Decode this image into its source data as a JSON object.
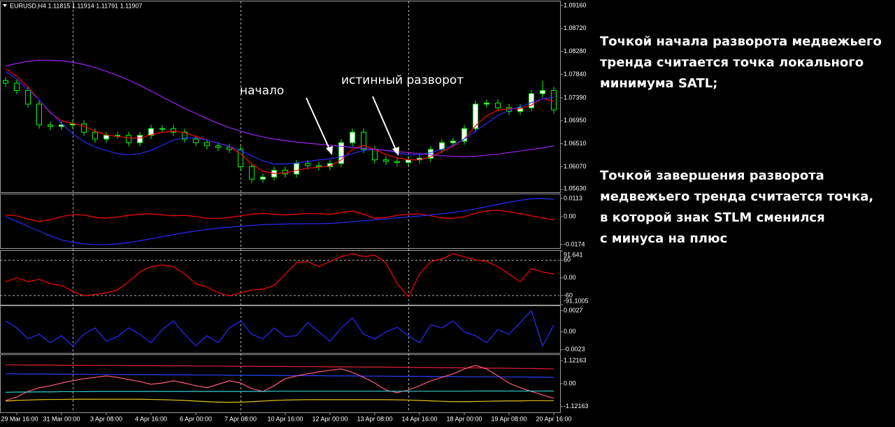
{
  "chart_data": [
    {
      "type": "candlestick",
      "title": "EURUSD,H4  1.11815 1.11914 1.11791 1.11907",
      "categories": [
        null,
        "29 Mar 16:00",
        null,
        null,
        null,
        "31 Mar 00:00",
        null,
        null,
        null,
        "3 Apr 08:00",
        null,
        null,
        null,
        "4 Apr 16:00",
        null,
        null,
        null,
        "6 Apr 00:00",
        null,
        null,
        null,
        "7 Apr 08:00",
        null,
        null,
        null,
        "10 Apr 16:00",
        null,
        null,
        null,
        "12 Apr 00:00",
        null,
        null,
        null,
        "13 Apr 08:00",
        null,
        null,
        null,
        "14 Apr 16:00",
        null,
        null,
        null,
        "18 Apr 00:00",
        null,
        null,
        null,
        "19 Apr 08:00",
        null,
        null,
        null,
        "20 Apr 16:00"
      ],
      "open": [
        1.0772,
        1.0767,
        1.0753,
        1.0727,
        1.0687,
        1.0684,
        1.0687,
        1.0689,
        1.0673,
        1.066,
        1.0667,
        1.0667,
        1.0653,
        1.0667,
        1.068,
        1.068,
        1.0673,
        1.066,
        1.0653,
        1.0647,
        1.0644,
        1.064,
        1.0607,
        1.0583,
        1.0587,
        1.06,
        1.0593,
        1.0613,
        1.0609,
        1.0607,
        1.0613,
        1.0653,
        1.0673,
        1.064,
        1.062,
        1.0617,
        1.0615,
        1.062,
        1.0623,
        1.064,
        1.0653,
        1.0656,
        1.068,
        1.0727,
        1.0729,
        1.072,
        1.0713,
        1.072,
        1.0747,
        1.0753
      ],
      "high": [
        1.0779,
        1.0774,
        1.076,
        1.0734,
        1.0694,
        1.0694,
        1.0696,
        1.0696,
        1.068,
        1.0674,
        1.0674,
        1.0674,
        1.0674,
        1.0687,
        1.0687,
        1.0687,
        1.068,
        1.0667,
        1.066,
        1.0654,
        1.0651,
        1.0647,
        1.0614,
        1.0594,
        1.0607,
        1.0607,
        1.062,
        1.062,
        1.0616,
        1.062,
        1.066,
        1.068,
        1.068,
        1.0647,
        1.0627,
        1.0624,
        1.0627,
        1.063,
        1.0647,
        1.066,
        1.0663,
        1.0687,
        1.0734,
        1.0736,
        1.0736,
        1.0727,
        1.0727,
        1.0754,
        1.0772,
        1.076
      ],
      "low": [
        1.076,
        1.0746,
        1.072,
        1.068,
        1.0677,
        1.0677,
        1.068,
        1.0666,
        1.0653,
        1.0653,
        1.066,
        1.0646,
        1.0646,
        1.066,
        1.0673,
        1.0666,
        1.0653,
        1.0646,
        1.064,
        1.0637,
        1.0633,
        1.06,
        1.0576,
        1.0576,
        1.058,
        1.0586,
        1.0586,
        1.0602,
        1.06,
        1.06,
        1.0606,
        1.0646,
        1.0633,
        1.0613,
        1.061,
        1.0608,
        1.0608,
        1.0613,
        1.0616,
        1.0633,
        1.0646,
        1.0649,
        1.0673,
        1.072,
        1.0713,
        1.0706,
        1.0706,
        1.0713,
        1.074,
        1.0709
      ],
      "close": [
        1.0767,
        1.0753,
        1.0727,
        1.0687,
        1.0684,
        1.0687,
        1.0689,
        1.0673,
        1.066,
        1.0667,
        1.0667,
        1.0653,
        1.0667,
        1.068,
        1.068,
        1.0673,
        1.066,
        1.0653,
        1.0647,
        1.0644,
        1.064,
        1.0607,
        1.0583,
        1.0587,
        1.06,
        1.0593,
        1.0613,
        1.0609,
        1.0607,
        1.0613,
        1.0653,
        1.0673,
        1.064,
        1.062,
        1.0617,
        1.0615,
        1.062,
        1.0623,
        1.064,
        1.0653,
        1.0656,
        1.068,
        1.0727,
        1.0729,
        1.072,
        1.0713,
        1.072,
        1.0747,
        1.0753,
        1.0716
      ],
      "up_color": "#ffffff",
      "down_color": "#000000",
      "wick_color": "#00ff00",
      "series": [
        {
          "color": "#ff0000",
          "values": [
            1.0795,
            1.078,
            1.076,
            1.0735,
            1.071,
            1.0695,
            1.069,
            1.0685,
            1.0675,
            1.0668,
            1.0665,
            1.0662,
            1.0662,
            1.0668,
            1.0673,
            1.0675,
            1.0672,
            1.0665,
            1.0658,
            1.0652,
            1.0646,
            1.0632,
            1.0612,
            1.0598,
            1.0594,
            1.0595,
            1.06,
            1.0604,
            1.0606,
            1.0608,
            1.062,
            1.064,
            1.0648,
            1.064,
            1.063,
            1.0624,
            1.062,
            1.062,
            1.0626,
            1.0636,
            1.0646,
            1.066,
            1.0685,
            1.0705,
            1.0715,
            1.0718,
            1.0718,
            1.0725,
            1.0738,
            1.0732
          ]
        },
        {
          "color": "#2a2aff",
          "values": [
            1.079,
            1.0775,
            1.0755,
            1.0735,
            1.0712,
            1.069,
            1.067,
            1.0655,
            1.0645,
            1.0638,
            1.0632,
            1.063,
            1.0632,
            1.0638,
            1.0648,
            1.0658,
            1.0662,
            1.0662,
            1.0658,
            1.0652,
            1.0646,
            1.0638,
            1.0628,
            1.0618,
            1.0612,
            1.0612,
            1.0614,
            1.0617,
            1.062,
            1.0622,
            1.0626,
            1.0632,
            1.0638,
            1.064,
            1.0638,
            1.0634,
            1.063,
            1.063,
            1.0634,
            1.064,
            1.0648,
            1.066,
            1.0675,
            1.069,
            1.0705,
            1.0715,
            1.0722,
            1.073,
            1.0737,
            1.074
          ]
        },
        {
          "color": "#a020f0",
          "values": [
            1.08,
            1.0805,
            1.0809,
            1.0811,
            1.0811,
            1.081,
            1.0807,
            1.0803,
            1.0797,
            1.079,
            1.0782,
            1.0773,
            1.0763,
            1.0752,
            1.0741,
            1.073,
            1.0719,
            1.0709,
            1.0699,
            1.069,
            1.0682,
            1.0675,
            1.0669,
            1.0664,
            1.066,
            1.0657,
            1.0654,
            1.0652,
            1.065,
            1.0648,
            1.0646,
            1.0644,
            1.0642,
            1.064,
            1.0638,
            1.0636,
            1.0634,
            1.0632,
            1.063,
            1.0628,
            1.0627,
            1.0626,
            1.0627,
            1.0629,
            1.0631,
            1.0634,
            1.0637,
            1.064,
            1.0643,
            1.0647
          ]
        }
      ],
      "annotations": [
        "начало",
        "истинный разворот"
      ],
      "ylim": [
        1.0558,
        1.0924
      ],
      "yticks": [
        {
          "value": 1.0916,
          "label": "1.09160"
        },
        {
          "value": 1.0872,
          "label": "1.08720"
        },
        {
          "value": 1.0828,
          "label": "1.08280"
        },
        {
          "value": 1.0784,
          "label": "1.07840"
        },
        {
          "value": 1.0739,
          "label": "1.07390"
        },
        {
          "value": 1.0695,
          "label": "1.06950"
        },
        {
          "value": 1.0651,
          "label": "1.06510"
        },
        {
          "value": 1.0607,
          "label": "1.06070"
        },
        {
          "value": 1.0563,
          "label": "1.05630"
        }
      ]
    },
    {
      "type": "line",
      "series": [
        {
          "color": "#ff0000",
          "values": [
            0.001,
            0.0005,
            -0.0015,
            -0.003,
            -0.002,
            0,
            0.0012,
            0.001,
            -0.0005,
            -0.001,
            -0.0002,
            0.0008,
            0.0015,
            0.0018,
            0.001,
            0.0005,
            0.0008,
            0,
            -0.001,
            -0.0012,
            -0.0005,
            0.0005,
            0.0015,
            0.002,
            0.0015,
            0.001,
            0.0015,
            0.002,
            0.0018,
            0.0015,
            0.0025,
            0.0035,
            0.0015,
            -0.001,
            -0.0005,
            0.0008,
            0.0015,
            0.0018,
            0.0005,
            -0.0008,
            -0.001,
            0,
            0.002,
            0.0035,
            0.004,
            0.003,
            0.0018,
            0.0005,
            -0.0008,
            -0.002
          ]
        },
        {
          "color": "#2a2aff",
          "values": [
            0,
            -0.003,
            -0.006,
            -0.009,
            -0.012,
            -0.0145,
            -0.016,
            -0.017,
            -0.0174,
            -0.0174,
            -0.017,
            -0.0162,
            -0.015,
            -0.0138,
            -0.0125,
            -0.0112,
            -0.01,
            -0.009,
            -0.008,
            -0.0072,
            -0.0066,
            -0.006,
            -0.0055,
            -0.005,
            -0.0048,
            -0.0046,
            -0.0045,
            -0.0044,
            -0.0044,
            -0.0042,
            -0.0038,
            -0.0032,
            -0.0026,
            -0.002,
            -0.0014,
            -0.0008,
            -0.0002,
            0.0004,
            0.001,
            0.0018,
            0.0026,
            0.0036,
            0.0048,
            0.0062,
            0.0076,
            0.009,
            0.0102,
            0.011,
            0.0113,
            0.0108
          ]
        }
      ],
      "ylim": [
        -0.0196,
        0.0139
      ],
      "yticks": [
        0.0113,
        {
          "value": 0,
          "label": "0.00"
        },
        -0.0174
      ]
    },
    {
      "type": "line",
      "series": [
        {
          "color": "#ff0000",
          "values": [
            -13,
            0,
            -13,
            -5,
            -20,
            -26,
            -46,
            -61,
            -56,
            -51,
            -41,
            -13,
            20,
            38,
            44,
            38,
            13,
            -20,
            -31,
            -51,
            -61,
            -51,
            -41,
            -38,
            -26,
            13,
            51,
            56,
            38,
            56,
            72,
            82,
            72,
            77,
            51,
            -20,
            -64,
            13,
            56,
            64,
            82,
            72,
            61,
            56,
            38,
            13,
            -13,
            31,
            20,
            13
          ]
        }
      ],
      "ylim": [
        -91.1005,
        91.641
      ],
      "yticks": [
        91.641,
        60,
        {
          "value": 0,
          "label": "0.00"
        },
        -60,
        -91.1005
      ],
      "levels": [
        60,
        -60
      ]
    },
    {
      "type": "line",
      "series": [
        {
          "color": "#2a2aff",
          "values": [
            0.0014,
            0.0005,
            -0.0009,
            -0.0003,
            -0.0014,
            -0.0005,
            -0.0018,
            -0.0003,
            0.0005,
            -0.0012,
            -0.0006,
            0.0005,
            -0.0003,
            -0.0014,
            0.0003,
            0.0014,
            -0.0003,
            -0.0018,
            -0.0005,
            -0.0014,
            0.0005,
            0.0014,
            -0.0003,
            -0.0009,
            0.0005,
            -0.0006,
            -0.0005,
            0.0012,
            0,
            -0.0012,
            0.0005,
            0.0018,
            -0.0003,
            -0.0009,
            0,
            0.0006,
            -0.0005,
            -0.0014,
            0.0009,
            0.0005,
            0.0014,
            0,
            -0.0005,
            -0.0014,
            0.0003,
            -0.0003,
            0.0012,
            0.0027,
            -0.0018,
            0.0009
          ]
        }
      ],
      "ylim": [
        -0.0027,
        0.0033
      ],
      "yticks": [
        0.0027,
        {
          "value": 0,
          "label": "0.00"
        },
        -0.0023
      ]
    },
    {
      "type": "line",
      "series": [
        {
          "color": "#e0203a",
          "values": [
            0.92,
            0.92,
            0.91,
            0.91,
            0.91,
            0.9,
            0.9,
            0.9,
            0.89,
            0.89,
            0.89,
            0.88,
            0.88,
            0.88,
            0.87,
            0.87,
            0.87,
            0.86,
            0.86,
            0.86,
            0.85,
            0.85,
            0.85,
            0.84,
            0.84,
            0.84,
            0.83,
            0.83,
            0.83,
            0.82,
            0.82,
            0.82,
            0.81,
            0.81,
            0.81,
            0.8,
            0.8,
            0.79,
            0.79,
            0.78,
            0.78,
            0.77,
            0.77,
            0.76,
            0.76,
            0.75,
            0.74,
            0.74,
            0.73,
            0.72
          ]
        },
        {
          "color": "#2a40ff",
          "values": [
            0.48,
            0.48,
            0.47,
            0.47,
            0.47,
            0.46,
            0.46,
            0.46,
            0.45,
            0.45,
            0.45,
            0.44,
            0.44,
            0.44,
            0.43,
            0.43,
            0.43,
            0.42,
            0.42,
            0.42,
            0.41,
            0.41,
            0.41,
            0.4,
            0.4,
            0.4,
            0.39,
            0.39,
            0.39,
            0.38,
            0.38,
            0.38,
            0.37,
            0.37,
            0.37,
            0.36,
            0.36,
            0.36,
            0.35,
            0.35,
            0.35,
            0.34,
            0.34,
            0.34,
            0.33,
            0.33,
            0.33,
            0.32,
            0.32,
            0.31
          ]
        },
        {
          "color": "#ff5a78",
          "values": [
            -0.82,
            -0.65,
            -0.38,
            -0.2,
            -0.1,
            0.03,
            0.14,
            0.24,
            0.31,
            0.38,
            0.31,
            0.2,
            0.1,
            -0.03,
            0.03,
            0.14,
            0.03,
            -0.1,
            -0.2,
            -0.03,
            0.14,
            0.03,
            -0.24,
            -0.38,
            -0.1,
            0.24,
            0.38,
            0.48,
            0.58,
            0.65,
            0.72,
            0.55,
            0.31,
            0.03,
            -0.31,
            -0.44,
            -0.31,
            -0.1,
            0.14,
            0.31,
            0.48,
            0.72,
            0.89,
            0.72,
            0.38,
            0.03,
            -0.2,
            -0.38,
            -0.55,
            -0.72
          ]
        },
        {
          "color": "#30d0d0",
          "values": [
            -0.42,
            -0.41,
            -0.41,
            -0.4,
            -0.4,
            -0.39,
            -0.39,
            -0.39,
            -0.38,
            -0.38,
            -0.38,
            -0.38,
            -0.38,
            -0.38,
            -0.38,
            -0.38,
            -0.38,
            -0.38,
            -0.38,
            -0.38,
            -0.38,
            -0.38,
            -0.38,
            -0.38,
            -0.37,
            -0.37,
            -0.37,
            -0.37,
            -0.37,
            -0.37,
            -0.37,
            -0.37,
            -0.37,
            -0.37,
            -0.37,
            -0.37,
            -0.37,
            -0.37,
            -0.37,
            -0.37,
            -0.37,
            -0.37,
            -0.36,
            -0.36,
            -0.36,
            -0.36,
            -0.36,
            -0.36,
            -0.36,
            -0.36
          ]
        },
        {
          "color": "#e0c020",
          "values": [
            -0.85,
            -0.82,
            -0.8,
            -0.78,
            -0.77,
            -0.77,
            -0.76,
            -0.76,
            -0.76,
            -0.76,
            -0.76,
            -0.76,
            -0.76,
            -0.77,
            -0.78,
            -0.8,
            -0.82,
            -0.85,
            -0.88,
            -0.9,
            -0.91,
            -0.9,
            -0.88,
            -0.85,
            -0.82,
            -0.8,
            -0.79,
            -0.78,
            -0.78,
            -0.78,
            -0.78,
            -0.78,
            -0.78,
            -0.78,
            -0.78,
            -0.79,
            -0.8,
            -0.82,
            -0.84,
            -0.86,
            -0.88,
            -0.88,
            -0.87,
            -0.86,
            -0.85,
            -0.84,
            -0.84,
            -0.83,
            -0.83,
            -0.83
          ]
        }
      ],
      "ylim": [
        -1.4,
        1.4
      ],
      "yticks": [
        1.12163,
        {
          "value": 0,
          "label": "0.00"
        },
        -1.12163
      ]
    }
  ],
  "notes": [
    [
      "Точкой начала разворота медвежьего",
      "тренда считается точка локального",
      "минимума SATL;"
    ],
    [
      "Точкой завершения разворота",
      "медвежьего тренда считается точка,",
      "в которой знак STLM сменился",
      "с минуса на плюс"
    ]
  ]
}
